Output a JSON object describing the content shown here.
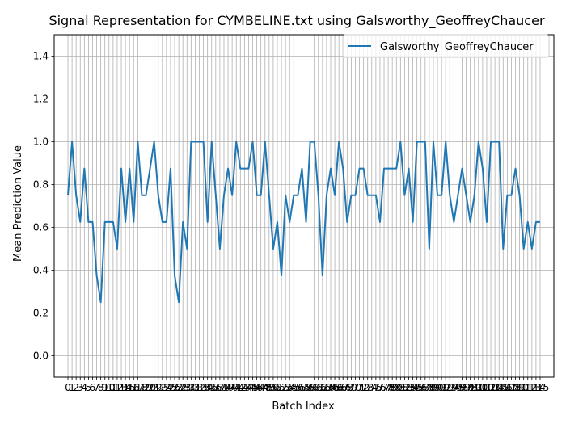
{
  "chart_data": {
    "type": "line",
    "title": "Signal Representation for CYMBELINE.txt using Galsworthy_GeoffreyChaucer",
    "xlabel": "Batch Index",
    "ylabel": "Mean Prediction Value",
    "xlim": [
      -3.35,
      118.35
    ],
    "ylim": [
      -0.1,
      1.5
    ],
    "yticks": [
      0.0,
      0.2,
      0.4,
      0.6,
      0.8,
      1.0,
      1.2,
      1.4
    ],
    "ytick_labels": [
      "0.0",
      "0.2",
      "0.4",
      "0.6",
      "0.8",
      "1.0",
      "1.2",
      "1.4"
    ],
    "grid": true,
    "legend": "top-right",
    "color": "#1f77b4",
    "series": [
      {
        "name": "Galsworthy_GeoffreyChaucer",
        "x": [
          0,
          1,
          2,
          3,
          4,
          5,
          6,
          7,
          8,
          9,
          10,
          11,
          12,
          13,
          14,
          15,
          16,
          17,
          18,
          19,
          20,
          21,
          22,
          23,
          24,
          25,
          26,
          27,
          28,
          29,
          30,
          31,
          32,
          33,
          34,
          35,
          36,
          37,
          38,
          39,
          40,
          41,
          42,
          43,
          44,
          45,
          46,
          47,
          48,
          49,
          50,
          51,
          52,
          53,
          54,
          55,
          56,
          57,
          58,
          59,
          60,
          61,
          62,
          63,
          64,
          65,
          66,
          67,
          68,
          69,
          70,
          71,
          72,
          73,
          74,
          75,
          76,
          77,
          78,
          79,
          80,
          81,
          82,
          83,
          84,
          85,
          86,
          87,
          88,
          89,
          90,
          91,
          92,
          93,
          94,
          95,
          96,
          97,
          98,
          99,
          100,
          101,
          102,
          103,
          104,
          105,
          106,
          107,
          108,
          109,
          110,
          111,
          112,
          113,
          114,
          115
        ],
        "values": [
          0.75,
          1.0,
          0.75,
          0.625,
          0.875,
          0.625,
          0.625,
          0.375,
          0.25,
          0.625,
          0.625,
          0.625,
          0.5,
          0.875,
          0.625,
          0.875,
          0.625,
          1.0,
          0.75,
          0.75,
          0.875,
          1.0,
          0.75,
          0.625,
          0.625,
          0.875,
          0.375,
          0.25,
          0.625,
          0.5,
          1.0,
          1.0,
          1.0,
          1.0,
          0.625,
          1.0,
          0.75,
          0.5,
          0.75,
          0.875,
          0.75,
          1.0,
          0.875,
          0.875,
          0.875,
          1.0,
          0.75,
          0.75,
          1.0,
          0.75,
          0.5,
          0.625,
          0.375,
          0.75,
          0.625,
          0.75,
          0.75,
          0.875,
          0.625,
          1.0,
          1.0,
          0.75,
          0.375,
          0.75,
          0.875,
          0.75,
          1.0,
          0.875,
          0.625,
          0.75,
          0.75,
          0.875,
          0.875,
          0.75,
          0.75,
          0.75,
          0.625,
          0.875,
          0.875,
          0.875,
          0.875,
          1.0,
          0.75,
          0.875,
          0.625,
          1.0,
          1.0,
          1.0,
          0.5,
          1.0,
          0.75,
          0.75,
          1.0,
          0.75,
          0.625,
          0.75,
          0.875,
          0.75,
          0.625,
          0.75,
          1.0,
          0.875,
          0.625,
          1.0,
          1.0,
          1.0,
          0.5,
          0.75,
          0.75,
          0.875,
          0.75,
          0.5,
          0.625,
          0.5,
          0.625,
          0.625
        ]
      }
    ],
    "xtick_labels_visible": "0 1 2 3 4 5 6 7 8 9 10 ... 113"
  }
}
